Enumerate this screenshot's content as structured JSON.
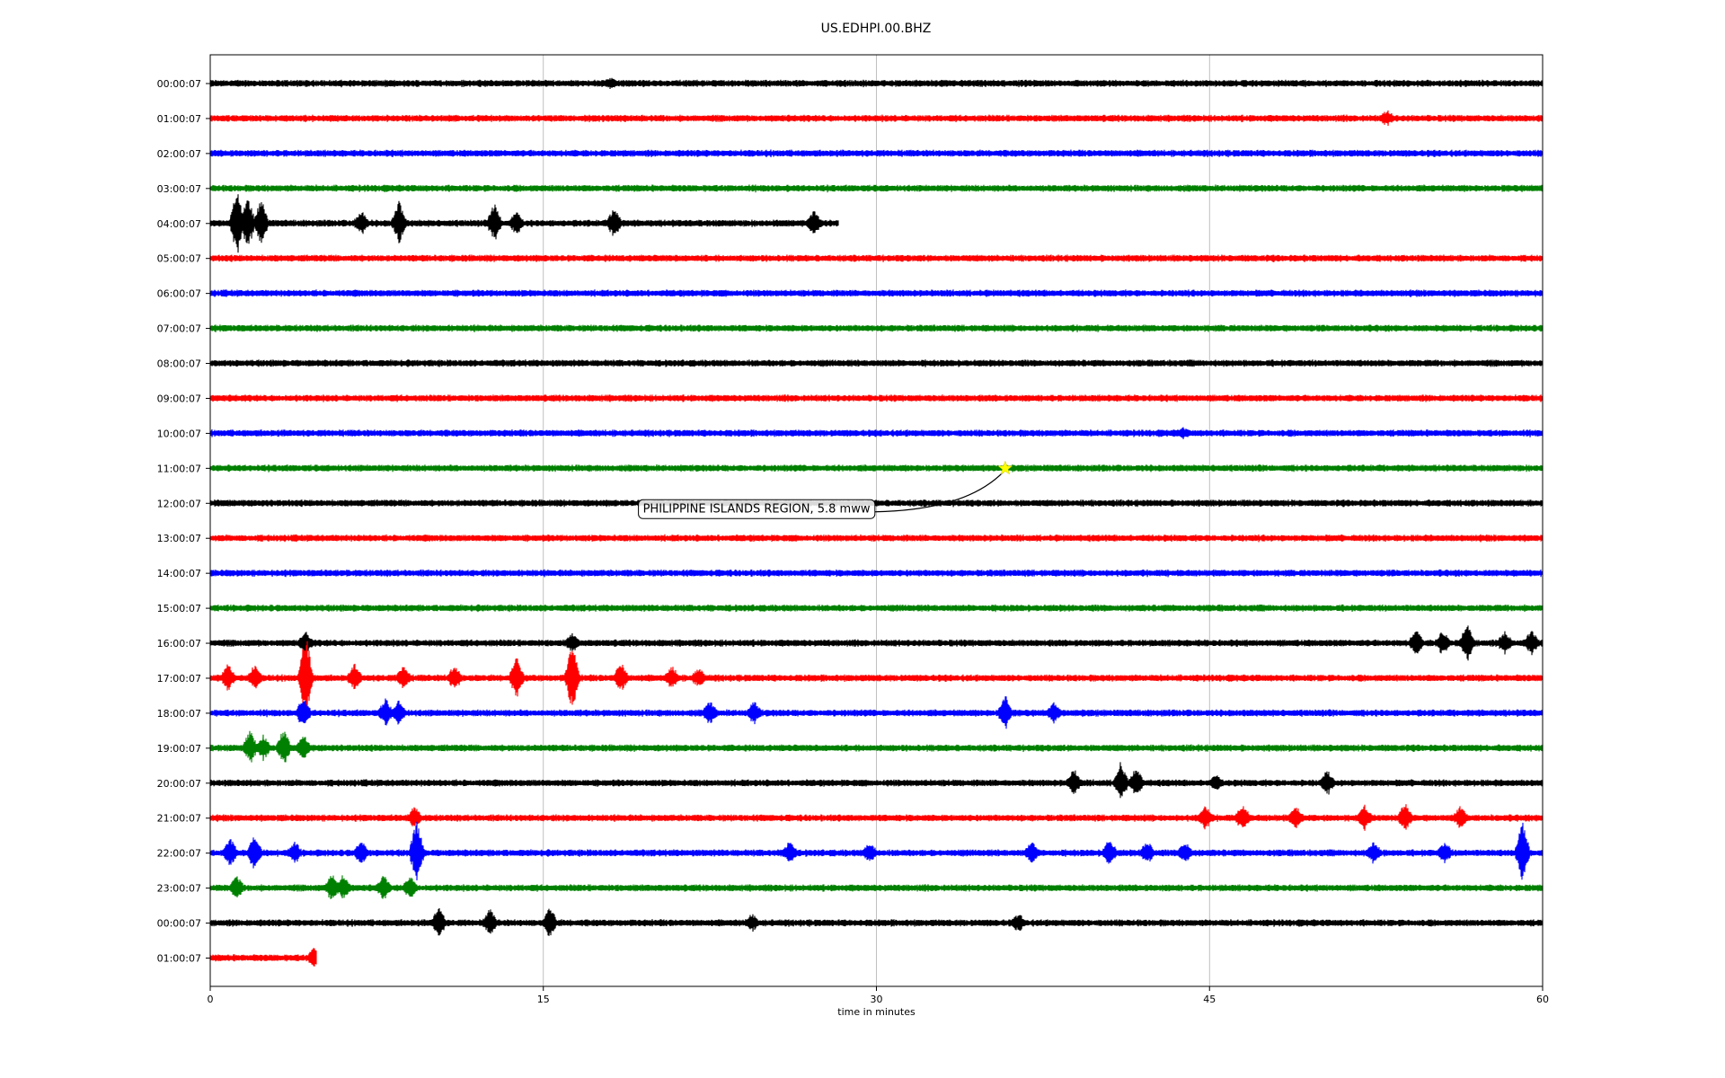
{
  "chart_data": {
    "type": "line",
    "title": "US.EDHPI.00.BHZ",
    "xlabel": "time in minutes",
    "ylabel": "",
    "xlim": [
      0,
      60
    ],
    "x_ticks": [
      "0",
      "15",
      "30",
      "45",
      "60"
    ],
    "x_tick_values": [
      0,
      15,
      30,
      45,
      60
    ],
    "grid": "vertical",
    "colors_cycle": [
      "#000000",
      "#ff0000",
      "#0000ff",
      "#008000"
    ],
    "traces": [
      {
        "label": "00:00:07",
        "color": "#000000",
        "start": 0,
        "end": 60,
        "events": [
          [
            18,
            0.3
          ]
        ]
      },
      {
        "label": "01:00:07",
        "color": "#ff0000",
        "start": 0,
        "end": 60,
        "events": [
          [
            53,
            0.5
          ]
        ]
      },
      {
        "label": "02:00:07",
        "color": "#0000ff",
        "start": 0,
        "end": 60,
        "events": []
      },
      {
        "label": "03:00:07",
        "color": "#008000",
        "start": 0,
        "end": 60,
        "events": []
      },
      {
        "label": "04:00:07",
        "color": "#000000",
        "start": 0,
        "end": 28.3,
        "events": [
          [
            1.2,
            2.5
          ],
          [
            1.7,
            2.0
          ],
          [
            2.3,
            1.8
          ],
          [
            6.8,
            0.9
          ],
          [
            8.5,
            1.7
          ],
          [
            12.8,
            1.5
          ],
          [
            13.8,
            0.8
          ],
          [
            18.2,
            1.2
          ],
          [
            27.2,
            0.9
          ]
        ]
      },
      {
        "label": "05:00:07",
        "color": "#ff0000",
        "start": 0,
        "end": 60,
        "events": []
      },
      {
        "label": "06:00:07",
        "color": "#0000ff",
        "start": 0,
        "end": 60,
        "events": []
      },
      {
        "label": "07:00:07",
        "color": "#008000",
        "start": 0,
        "end": 60,
        "events": []
      },
      {
        "label": "08:00:07",
        "color": "#000000",
        "start": 0,
        "end": 60,
        "events": []
      },
      {
        "label": "09:00:07",
        "color": "#ff0000",
        "start": 0,
        "end": 60,
        "events": []
      },
      {
        "label": "10:00:07",
        "color": "#0000ff",
        "start": 0,
        "end": 60,
        "events": [
          [
            43.8,
            0.3
          ]
        ]
      },
      {
        "label": "11:00:07",
        "color": "#008000",
        "start": 0,
        "end": 60,
        "events": []
      },
      {
        "label": "12:00:07",
        "color": "#000000",
        "start": 0,
        "end": 60,
        "events": []
      },
      {
        "label": "13:00:07",
        "color": "#ff0000",
        "start": 0,
        "end": 60,
        "events": []
      },
      {
        "label": "14:00:07",
        "color": "#0000ff",
        "start": 0,
        "end": 60,
        "events": []
      },
      {
        "label": "15:00:07",
        "color": "#008000",
        "start": 0,
        "end": 60,
        "events": []
      },
      {
        "label": "16:00:07",
        "color": "#000000",
        "start": 0,
        "end": 60,
        "events": [
          [
            4.3,
            0.8
          ],
          [
            16.3,
            0.6
          ],
          [
            54.3,
            0.9
          ],
          [
            55.5,
            0.9
          ],
          [
            56.6,
            1.5
          ],
          [
            58.3,
            0.8
          ],
          [
            59.5,
            0.9
          ]
        ]
      },
      {
        "label": "17:00:07",
        "color": "#ff0000",
        "start": 0,
        "end": 60,
        "events": [
          [
            0.8,
            1.0
          ],
          [
            2.0,
            0.9
          ],
          [
            4.3,
            3.5
          ],
          [
            6.5,
            1.0
          ],
          [
            8.7,
            0.9
          ],
          [
            11.0,
            0.9
          ],
          [
            13.8,
            1.6
          ],
          [
            16.3,
            2.8
          ],
          [
            18.5,
            1.1
          ],
          [
            20.8,
            0.8
          ],
          [
            22.0,
            0.7
          ]
        ]
      },
      {
        "label": "18:00:07",
        "color": "#0000ff",
        "start": 0,
        "end": 60,
        "events": [
          [
            4.2,
            1.2
          ],
          [
            7.9,
            1.0
          ],
          [
            8.5,
            0.9
          ],
          [
            22.5,
            0.8
          ],
          [
            24.5,
            0.8
          ],
          [
            35.8,
            1.4
          ],
          [
            38.0,
            0.7
          ]
        ]
      },
      {
        "label": "19:00:07",
        "color": "#008000",
        "start": 0,
        "end": 60,
        "events": [
          [
            1.8,
            1.3
          ],
          [
            2.4,
            0.9
          ],
          [
            3.3,
            1.4
          ],
          [
            4.2,
            0.9
          ]
        ]
      },
      {
        "label": "20:00:07",
        "color": "#000000",
        "start": 0,
        "end": 60,
        "events": [
          [
            38.9,
            1.0
          ],
          [
            41.0,
            1.6
          ],
          [
            41.7,
            1.1
          ],
          [
            45.3,
            0.5
          ],
          [
            50.3,
            0.9
          ]
        ]
      },
      {
        "label": "21:00:07",
        "color": "#ff0000",
        "start": 0,
        "end": 60,
        "events": [
          [
            9.2,
            0.8
          ],
          [
            44.8,
            0.9
          ],
          [
            46.5,
            1.0
          ],
          [
            48.9,
            0.8
          ],
          [
            52.0,
            0.9
          ],
          [
            53.8,
            1.1
          ],
          [
            56.3,
            0.8
          ]
        ]
      },
      {
        "label": "22:00:07",
        "color": "#0000ff",
        "start": 0,
        "end": 60,
        "events": [
          [
            0.9,
            1.1
          ],
          [
            2.0,
            1.3
          ],
          [
            3.8,
            0.8
          ],
          [
            6.8,
            0.9
          ],
          [
            9.3,
            2.5
          ],
          [
            26.1,
            0.8
          ],
          [
            29.7,
            0.7
          ],
          [
            37.0,
            0.8
          ],
          [
            40.5,
            1.0
          ],
          [
            42.2,
            0.8
          ],
          [
            43.9,
            0.8
          ],
          [
            52.4,
            0.8
          ],
          [
            55.6,
            0.8
          ],
          [
            59.1,
            2.5
          ]
        ]
      },
      {
        "label": "23:00:07",
        "color": "#008000",
        "start": 0,
        "end": 60,
        "events": [
          [
            1.2,
            0.8
          ],
          [
            5.5,
            1.0
          ],
          [
            6.0,
            1.0
          ],
          [
            7.8,
            0.9
          ],
          [
            9.0,
            0.9
          ]
        ]
      },
      {
        "label": "00:00:07",
        "color": "#000000",
        "start": 0,
        "end": 60,
        "events": [
          [
            10.3,
            1.2
          ],
          [
            12.6,
            1.0
          ],
          [
            15.3,
            1.2
          ],
          [
            24.4,
            0.6
          ],
          [
            36.4,
            0.6
          ]
        ]
      },
      {
        "label": "01:00:07",
        "color": "#ff0000",
        "start": 0,
        "end": 4.8,
        "events": [
          [
            4.7,
            0.8
          ]
        ]
      }
    ],
    "marker": {
      "trace": 11,
      "time": 35.8,
      "color": "#ffff00",
      "shape": "star"
    },
    "annotation": {
      "text": "PHILIPPINE ISLANDS REGION, 5.8 mww",
      "trace": 12,
      "time": 24.6
    }
  }
}
